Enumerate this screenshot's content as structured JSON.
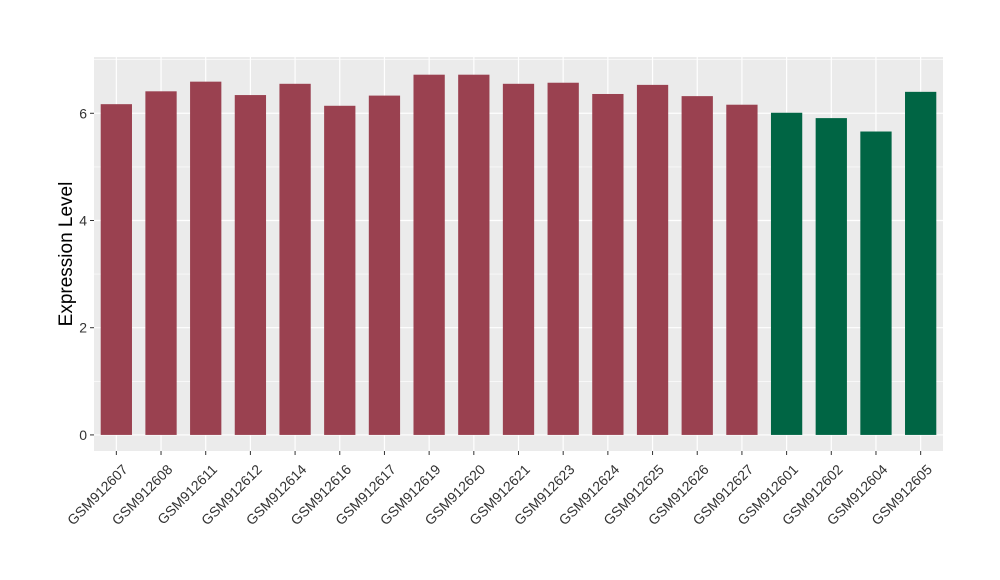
{
  "chart_data": {
    "type": "bar",
    "title": "",
    "xlabel": "",
    "ylabel": "Expression Level",
    "ylim": [
      -0.3,
      7.05
    ],
    "yticks": [
      0,
      2,
      4,
      6
    ],
    "grid": true,
    "legend": "none",
    "categories": [
      "GSM912607",
      "GSM912608",
      "GSM912611",
      "GSM912612",
      "GSM912614",
      "GSM912616",
      "GSM912617",
      "GSM912619",
      "GSM912620",
      "GSM912621",
      "GSM912623",
      "GSM912624",
      "GSM912625",
      "GSM912626",
      "GSM912627",
      "GSM912601",
      "GSM912602",
      "GSM912604",
      "GSM912605"
    ],
    "values": [
      6.17,
      6.41,
      6.59,
      6.34,
      6.55,
      6.14,
      6.33,
      6.72,
      6.72,
      6.55,
      6.57,
      6.36,
      6.53,
      6.32,
      6.16,
      6.01,
      5.91,
      5.66,
      6.4
    ],
    "group_colors": [
      "#9a4150",
      "#9a4150",
      "#9a4150",
      "#9a4150",
      "#9a4150",
      "#9a4150",
      "#9a4150",
      "#9a4150",
      "#9a4150",
      "#9a4150",
      "#9a4150",
      "#9a4150",
      "#9a4150",
      "#9a4150",
      "#9a4150",
      "#006544",
      "#006544",
      "#006544",
      "#006544"
    ],
    "panel_background": "#ebebeb",
    "grid_color": "#ffffff"
  }
}
